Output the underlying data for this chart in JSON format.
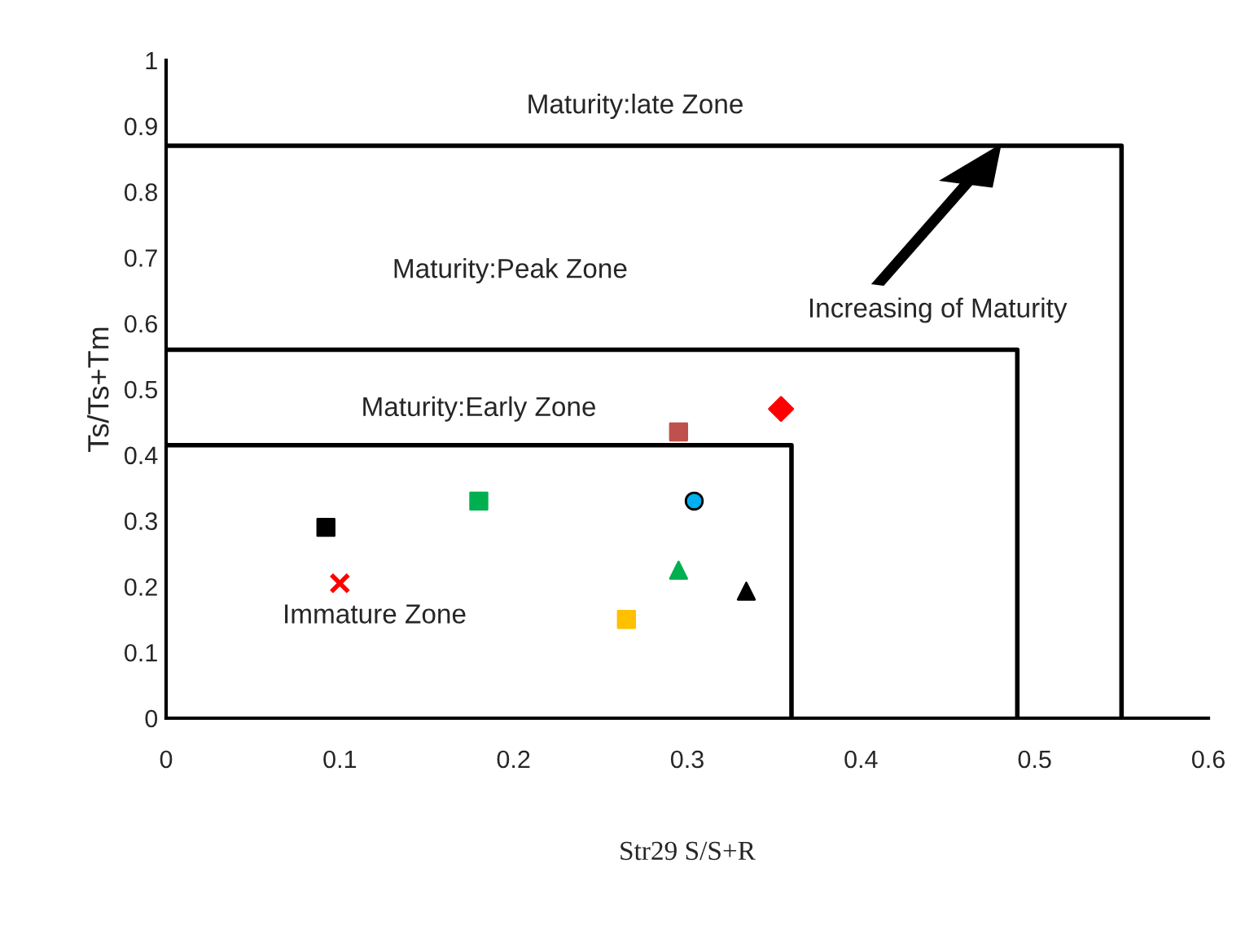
{
  "chart_data": {
    "type": "scatter",
    "xlabel": "Str29 S/S+R",
    "ylabel": "Ts/Ts+Tm",
    "xlim": [
      0,
      0.6
    ],
    "ylim": [
      0,
      1
    ],
    "xticks": [
      0,
      0.1,
      0.2,
      0.3,
      0.4,
      0.5,
      0.6
    ],
    "yticks": [
      0,
      0.1,
      0.2,
      0.3,
      0.4,
      0.5,
      0.6,
      0.7,
      0.8,
      0.9,
      1
    ],
    "grid": false,
    "legend": false,
    "series": [
      {
        "type": "line",
        "x": [
          0,
          0.36,
          0.36
        ],
        "values": [
          0.415,
          0.415,
          0
        ],
        "color": "#000000",
        "marker": "none"
      },
      {
        "type": "line",
        "x": [
          0,
          0.49,
          0.49
        ],
        "values": [
          0.56,
          0.56,
          0
        ],
        "color": "#000000",
        "marker": "none"
      },
      {
        "type": "line",
        "x": [
          0,
          0.55,
          0.55
        ],
        "values": [
          0.87,
          0.87,
          0
        ],
        "color": "#000000",
        "marker": "none"
      },
      {
        "x": [
          0.092
        ],
        "values": [
          0.29
        ],
        "color": "#000000",
        "marker": "square"
      },
      {
        "x": [
          0.1
        ],
        "values": [
          0.205
        ],
        "color": "#ff0000",
        "marker": "cross"
      },
      {
        "x": [
          0.18
        ],
        "values": [
          0.33
        ],
        "color": "#00b050",
        "marker": "square"
      },
      {
        "x": [
          0.295
        ],
        "values": [
          0.435
        ],
        "color": "#c0504d",
        "marker": "square"
      },
      {
        "x": [
          0.354
        ],
        "values": [
          0.47
        ],
        "color": "#ff0000",
        "marker": "diamond"
      },
      {
        "x": [
          0.304
        ],
        "values": [
          0.33
        ],
        "color": "#00b0f0",
        "marker": "circle"
      },
      {
        "x": [
          0.295
        ],
        "values": [
          0.225
        ],
        "color": "#00b050",
        "marker": "triangle"
      },
      {
        "x": [
          0.334
        ],
        "values": [
          0.193
        ],
        "color": "#000000",
        "marker": "triangle"
      },
      {
        "x": [
          0.265
        ],
        "values": [
          0.15
        ],
        "color": "#ffc000",
        "marker": "square"
      }
    ],
    "annotations": [
      "Maturity:late Zone",
      "Maturity:Peak Zone",
      "Maturity:Early Zone",
      "Immature Zone",
      "Increasing of Maturity"
    ]
  }
}
